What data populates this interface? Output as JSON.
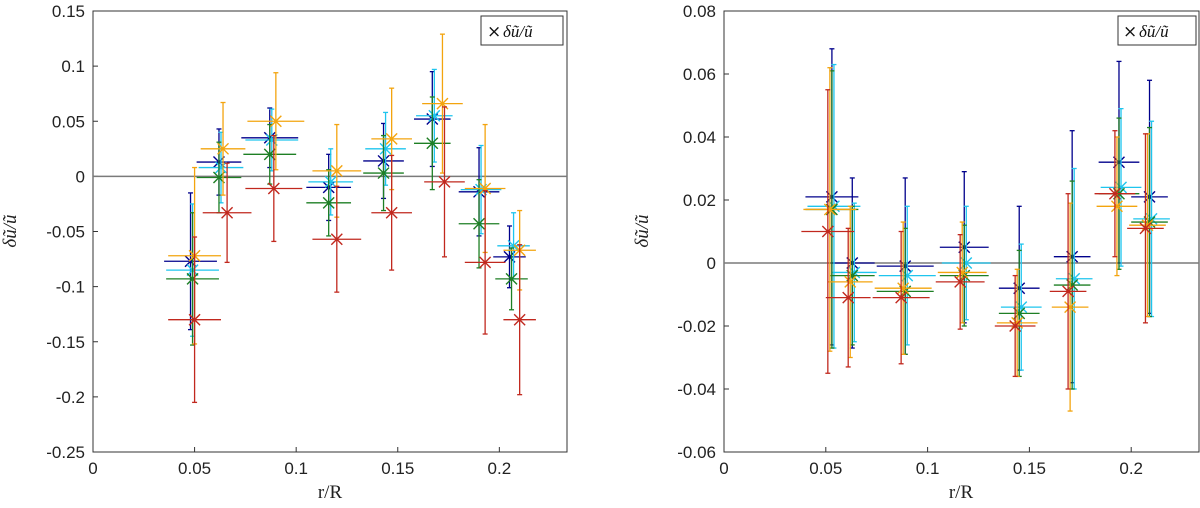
{
  "chart_data": [
    {
      "type": "scatter",
      "title": "",
      "xlabel": "r/R",
      "ylabel": "δũ/ũ",
      "xlim": [
        0,
        0.2333
      ],
      "ylim": [
        -0.25,
        0.15
      ],
      "xticks": [
        0,
        0.05,
        0.1,
        0.15,
        0.2
      ],
      "xtick_labels": [
        "0",
        "0.05",
        "0.1",
        "0.15",
        "0.2"
      ],
      "yticks": [
        -0.25,
        -0.2,
        -0.15,
        -0.1,
        -0.05,
        0,
        0.05,
        0.1,
        0.15
      ],
      "ytick_labels": [
        "-0.25",
        "-0.2",
        "-0.15",
        "-0.1",
        "-0.05",
        "0",
        "0.05",
        "0.1",
        "0.15"
      ],
      "zero_line": true,
      "legend": {
        "label": "δũ/ũ",
        "marker": "×",
        "position": "top-right"
      },
      "series": [
        {
          "name": "navy",
          "color": "#00008b",
          "x": [
            0.048,
            0.062,
            0.087,
            0.116,
            0.143,
            0.167,
            0.19,
            0.205
          ],
          "y": [
            -0.077,
            0.013,
            0.035,
            -0.01,
            0.014,
            0.052,
            -0.014,
            -0.073
          ],
          "xerr": [
            0.013,
            0.011,
            0.014,
            0.011,
            0.01,
            0.009,
            0.01,
            0.008
          ],
          "yerr": [
            0.062,
            0.03,
            0.027,
            0.03,
            0.034,
            0.043,
            0.04,
            0.028
          ]
        },
        {
          "name": "sky",
          "color": "#1ec5ee",
          "x": [
            0.049,
            0.063,
            0.088,
            0.117,
            0.144,
            0.168,
            0.191,
            0.207
          ],
          "y": [
            -0.085,
            0.008,
            0.033,
            -0.005,
            0.025,
            0.055,
            -0.012,
            -0.063
          ],
          "xerr": [
            0.013,
            0.011,
            0.013,
            0.011,
            0.01,
            0.009,
            0.01,
            0.008
          ],
          "yerr": [
            0.06,
            0.032,
            0.028,
            0.03,
            0.033,
            0.042,
            0.04,
            0.03
          ]
        },
        {
          "name": "green",
          "color": "#1e7f24",
          "x": [
            0.049,
            0.062,
            0.087,
            0.116,
            0.143,
            0.167,
            0.19,
            0.206
          ],
          "y": [
            -0.093,
            -0.001,
            0.02,
            -0.024,
            0.003,
            0.03,
            -0.043,
            -0.093
          ],
          "xerr": [
            0.013,
            0.011,
            0.013,
            0.011,
            0.01,
            0.009,
            0.01,
            0.008
          ],
          "yerr": [
            0.06,
            0.032,
            0.027,
            0.03,
            0.034,
            0.042,
            0.04,
            0.028
          ]
        },
        {
          "name": "orange",
          "color": "#f3a40e",
          "x": [
            0.05,
            0.064,
            0.09,
            0.12,
            0.147,
            0.172,
            0.193,
            0.21
          ],
          "y": [
            -0.072,
            0.025,
            0.05,
            0.005,
            0.034,
            0.066,
            -0.011,
            -0.067
          ],
          "xerr": [
            0.013,
            0.011,
            0.014,
            0.012,
            0.01,
            0.01,
            0.01,
            0.008
          ],
          "yerr": [
            0.08,
            0.042,
            0.044,
            0.042,
            0.046,
            0.063,
            0.058,
            0.036
          ]
        },
        {
          "name": "red",
          "color": "#c1281e",
          "x": [
            0.05,
            0.066,
            0.089,
            0.12,
            0.147,
            0.173,
            0.193,
            0.21
          ],
          "y": [
            -0.13,
            -0.033,
            -0.011,
            -0.057,
            -0.033,
            -0.005,
            -0.078,
            -0.13
          ],
          "xerr": [
            0.013,
            0.012,
            0.014,
            0.012,
            0.01,
            0.01,
            0.01,
            0.008
          ],
          "yerr": [
            0.075,
            0.045,
            0.048,
            0.048,
            0.052,
            0.068,
            0.065,
            0.068
          ]
        }
      ]
    },
    {
      "type": "scatter",
      "title": "",
      "xlabel": "r/R",
      "ylabel": "δũ/ũ",
      "xlim": [
        0,
        0.2333
      ],
      "ylim": [
        -0.06,
        0.08
      ],
      "xticks": [
        0,
        0.05,
        0.1,
        0.15,
        0.2
      ],
      "xtick_labels": [
        "0",
        "0.05",
        "0.1",
        "0.15",
        "0.2"
      ],
      "yticks": [
        -0.06,
        -0.04,
        -0.02,
        0,
        0.02,
        0.04,
        0.06,
        0.08
      ],
      "ytick_labels": [
        "-0.06",
        "-0.04",
        "-0.02",
        "0",
        "0.02",
        "0.04",
        "0.06",
        "0.08"
      ],
      "zero_line": true,
      "legend": {
        "label": "δũ/ũ",
        "marker": "×",
        "position": "top-right"
      },
      "series": [
        {
          "name": "navy",
          "color": "#00008b",
          "x": [
            0.053,
            0.063,
            0.089,
            0.118,
            0.145,
            0.171,
            0.194,
            0.209
          ],
          "y": [
            0.021,
            0.0,
            -0.001,
            0.005,
            -0.008,
            0.002,
            0.032,
            0.021
          ],
          "xerr": [
            0.013,
            0.011,
            0.014,
            0.012,
            0.01,
            0.009,
            0.01,
            0.009
          ],
          "yerr": [
            0.047,
            0.027,
            0.028,
            0.024,
            0.026,
            0.04,
            0.032,
            0.037
          ]
        },
        {
          "name": "sky",
          "color": "#1ec5ee",
          "x": [
            0.054,
            0.064,
            0.09,
            0.119,
            0.146,
            0.172,
            0.195,
            0.21
          ],
          "y": [
            0.018,
            -0.003,
            -0.004,
            0.0,
            -0.014,
            -0.005,
            0.024,
            0.014
          ],
          "xerr": [
            0.013,
            0.011,
            0.014,
            0.012,
            0.01,
            0.009,
            0.01,
            0.009
          ],
          "yerr": [
            0.045,
            0.022,
            0.022,
            0.018,
            0.02,
            0.035,
            0.025,
            0.031
          ]
        },
        {
          "name": "green",
          "color": "#1e7f24",
          "x": [
            0.053,
            0.063,
            0.089,
            0.118,
            0.145,
            0.171,
            0.194,
            0.209
          ],
          "y": [
            0.017,
            -0.004,
            -0.009,
            -0.004,
            -0.016,
            -0.007,
            0.022,
            0.013
          ],
          "xerr": [
            0.013,
            0.011,
            0.014,
            0.012,
            0.01,
            0.009,
            0.01,
            0.009
          ],
          "yerr": [
            0.044,
            0.022,
            0.02,
            0.016,
            0.02,
            0.033,
            0.024,
            0.03
          ]
        },
        {
          "name": "orange",
          "color": "#f3a40e",
          "x": [
            0.052,
            0.062,
            0.088,
            0.117,
            0.144,
            0.17,
            0.193,
            0.208
          ],
          "y": [
            0.017,
            -0.006,
            -0.008,
            -0.003,
            -0.019,
            -0.014,
            0.018,
            0.012
          ],
          "xerr": [
            0.013,
            0.011,
            0.014,
            0.012,
            0.01,
            0.009,
            0.01,
            0.009
          ],
          "yerr": [
            0.045,
            0.024,
            0.021,
            0.016,
            0.017,
            0.033,
            0.022,
            0.029
          ]
        },
        {
          "name": "red",
          "color": "#c1281e",
          "x": [
            0.051,
            0.061,
            0.087,
            0.116,
            0.143,
            0.169,
            0.192,
            0.207
          ],
          "y": [
            0.01,
            -0.011,
            -0.011,
            -0.006,
            -0.02,
            -0.009,
            0.022,
            0.011
          ],
          "xerr": [
            0.013,
            0.011,
            0.014,
            0.012,
            0.01,
            0.009,
            0.01,
            0.009
          ],
          "yerr": [
            0.045,
            0.022,
            0.021,
            0.015,
            0.016,
            0.031,
            0.02,
            0.03
          ]
        }
      ]
    }
  ]
}
